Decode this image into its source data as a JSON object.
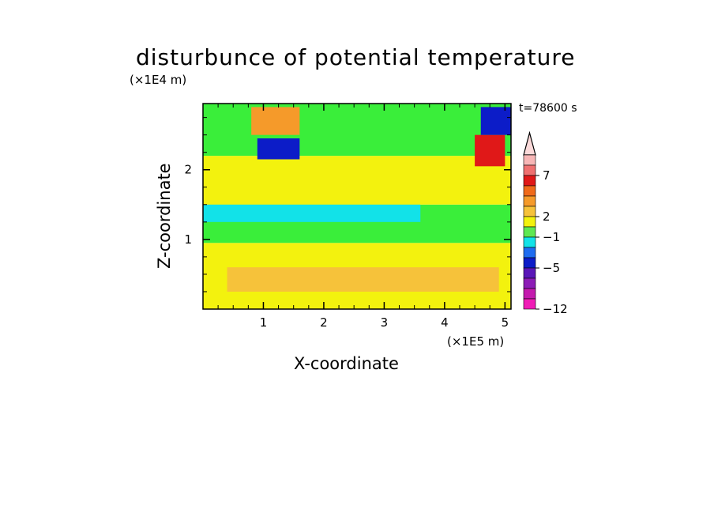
{
  "chart_data": {
    "type": "heatmap",
    "title": "disturbunce of potential temperature",
    "xlabel": "X-coordinate",
    "ylabel": "Z-coordinate",
    "x_scale_label": "(×1E5 m)",
    "y_scale_label": "(×1E4 m)",
    "annotation": "t=78600 s",
    "xlim": [
      0,
      5.1
    ],
    "ylim": [
      0,
      2.95
    ],
    "x_ticks": [
      1,
      2,
      3,
      4,
      5
    ],
    "y_ticks": [
      1,
      2
    ],
    "x_tick_labels": [
      "1",
      "2",
      "3",
      "4",
      "5"
    ],
    "y_tick_labels": [
      "1",
      "2"
    ],
    "colorbar": {
      "levels": [
        "7",
        "2",
        "−1",
        "−5",
        "−12"
      ],
      "level_values": [
        7,
        2,
        -1,
        -5,
        -12
      ],
      "colors_top_to_bottom": [
        "#f7b6b6",
        "#ef7070",
        "#e01818",
        "#f06a1a",
        "#f59a2a",
        "#f6c23a",
        "#f3f20e",
        "#5ee852",
        "#12e2e8",
        "#1e6cf0",
        "#0c1cc8",
        "#5a16b8",
        "#8c1cb6",
        "#c41aae",
        "#f01cb6"
      ]
    },
    "palette": {
      "orange": "#f59a2a",
      "yellow": "#f3f20e",
      "lightorange": "#f6c23a",
      "green": "#3aee3a",
      "cyan": "#12e2e8",
      "blue": "#1e6cf0",
      "darkblue": "#0c1cc8",
      "red": "#e01818",
      "pink": "#f7b6b6"
    },
    "regions": [
      {
        "name": "bottom-orange",
        "color": "orange",
        "x": [
          0,
          5.1
        ],
        "z": [
          0,
          0.25
        ]
      },
      {
        "name": "lower-yellow",
        "color": "yellow",
        "x": [
          0,
          5.1
        ],
        "z": [
          0,
          0.95
        ]
      },
      {
        "name": "lower-orange-band",
        "color": "lightorange",
        "x": [
          0.4,
          4.9
        ],
        "z": [
          0.25,
          0.6
        ]
      },
      {
        "name": "mid-green",
        "color": "green",
        "x": [
          0,
          5.1
        ],
        "z": [
          0.95,
          1.5
        ]
      },
      {
        "name": "mid-cyan",
        "color": "cyan",
        "x": [
          0,
          3.6
        ],
        "z": [
          1.25,
          1.6
        ]
      },
      {
        "name": "upper-yellow",
        "color": "yellow",
        "x": [
          0,
          5.1
        ],
        "z": [
          1.5,
          2.2
        ]
      },
      {
        "name": "upper-green",
        "color": "green",
        "x": [
          0,
          5.1
        ],
        "z": [
          2.2,
          2.95
        ]
      },
      {
        "name": "upper-left-orange",
        "color": "orange",
        "x": [
          0.8,
          1.6
        ],
        "z": [
          2.5,
          2.9
        ]
      },
      {
        "name": "upper-left-blue",
        "color": "darkblue",
        "x": [
          0.9,
          1.6
        ],
        "z": [
          2.15,
          2.45
        ]
      },
      {
        "name": "upper-right-red",
        "color": "red",
        "x": [
          4.5,
          5.0
        ],
        "z": [
          2.05,
          2.5
        ]
      },
      {
        "name": "upper-right-blue",
        "color": "darkblue",
        "x": [
          4.6,
          5.1
        ],
        "z": [
          2.5,
          2.9
        ]
      }
    ]
  }
}
